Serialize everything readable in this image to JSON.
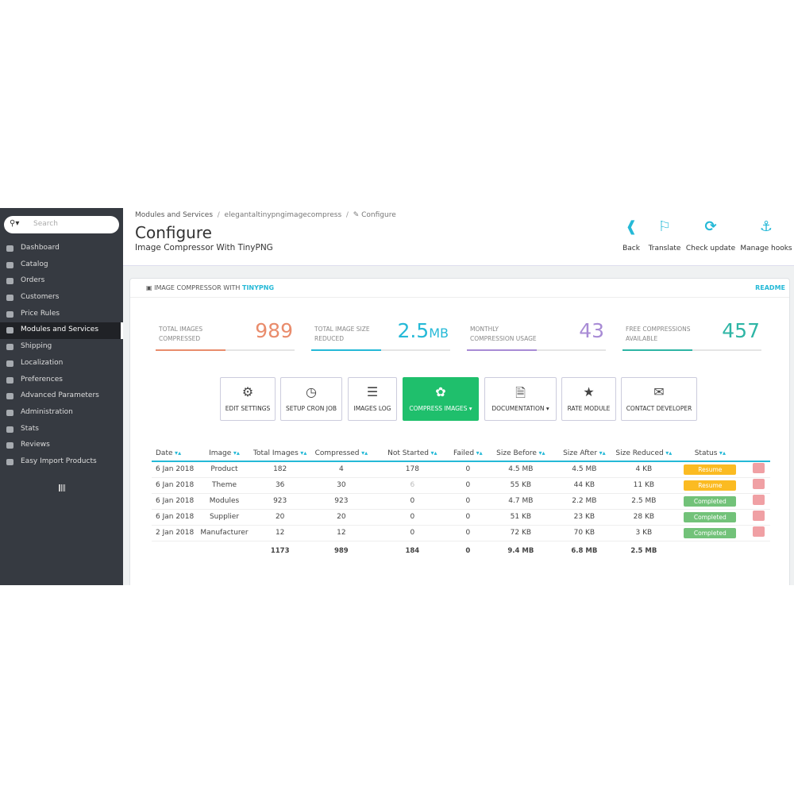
{
  "search": {
    "placeholder": "Search"
  },
  "sidebar": {
    "items": [
      "Dashboard",
      "Catalog",
      "Orders",
      "Customers",
      "Price Rules",
      "Modules and Services",
      "Shipping",
      "Localization",
      "Preferences",
      "Advanced Parameters",
      "Administration",
      "Stats",
      "Reviews",
      "Easy Import Products"
    ]
  },
  "header": {
    "breadcrumb": [
      "Modules and Services",
      "elegantaltinypngimagecompress",
      "Configure"
    ],
    "title": "Configure",
    "subtitle": "Image Compressor With TinyPNG",
    "toolbar": [
      "Back",
      "Translate",
      "Check update",
      "Manage hooks"
    ]
  },
  "panel": {
    "heading": "IMAGE COMPRESSOR WITH",
    "heading_brand": "TINYPNG",
    "readme": "README",
    "stats": [
      {
        "label": "TOTAL IMAGES COMPRESSED",
        "value": 989
      },
      {
        "label": "TOTAL IMAGE SIZE REDUCED",
        "value": "2.5",
        "unit": "MB"
      },
      {
        "label": "MONTHLY COMPRESSION USAGE",
        "value": 43
      },
      {
        "label": "FREE COMPRESSIONS AVAILABLE",
        "value": 457
      }
    ],
    "buttons": [
      "EDIT SETTINGS",
      "SETUP CRON JOB",
      "IMAGES LOG",
      "COMPRESS IMAGES",
      "DOCUMENTATION",
      "RATE MODULE",
      "CONTACT DEVELOPER"
    ]
  },
  "table": {
    "headers": [
      "Date",
      "Image",
      "Total Images",
      "Compressed",
      "Not Started",
      "Failed",
      "Size Before",
      "Size After",
      "Size Reduced",
      "Status"
    ],
    "rows": [
      [
        "6 Jan 2018",
        "Product",
        182,
        4,
        178,
        0,
        "4.5 MB",
        "4.5 MB",
        "4 KB",
        "Resume"
      ],
      [
        "6 Jan 2018",
        "Theme",
        36,
        30,
        6,
        0,
        "55 KB",
        "44 KB",
        "11 KB",
        "Resume"
      ],
      [
        "6 Jan 2018",
        "Modules",
        923,
        923,
        0,
        0,
        "4.7 MB",
        "2.2 MB",
        "2.5 MB",
        "Completed"
      ],
      [
        "6 Jan 2018",
        "Supplier",
        20,
        20,
        0,
        0,
        "51 KB",
        "23 KB",
        "28 KB",
        "Completed"
      ],
      [
        "2 Jan 2018",
        "Manufacturer",
        12,
        12,
        0,
        0,
        "72 KB",
        "70 KB",
        "3 KB",
        "Completed"
      ]
    ],
    "totals": [
      1173,
      989,
      184,
      0,
      "9.4 MB",
      "6.8 MB",
      "2.5 MB"
    ]
  }
}
